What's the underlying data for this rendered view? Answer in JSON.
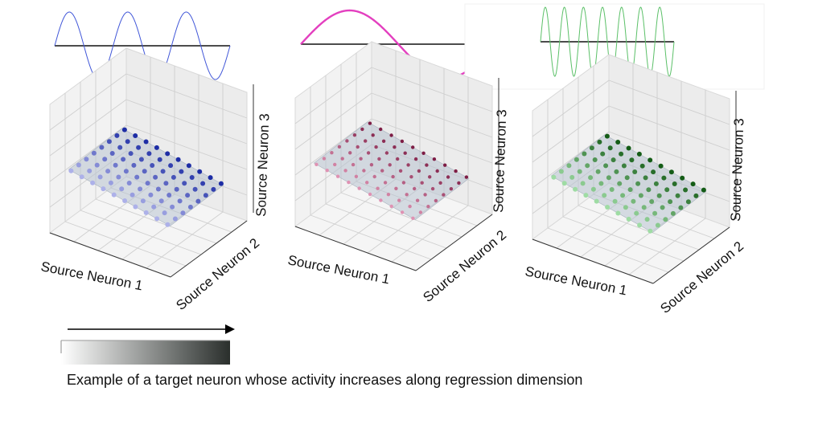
{
  "waves": [
    {
      "name": "blue-sine",
      "color": "#4056d8",
      "cycles": 3
    },
    {
      "name": "pink-sine",
      "color": "#e33fbf",
      "cycles": 0.85
    },
    {
      "name": "green-sine",
      "color": "#5bc068",
      "cycles": 7
    }
  ],
  "panels": [
    {
      "name": "blue",
      "palette": {
        "low": "#c6c8f5",
        "high": "#1d2da5"
      },
      "axis_labels": {
        "x": "Source Neuron 1",
        "y": "Source Neuron 2",
        "z": "Source Neuron 3"
      }
    },
    {
      "name": "pink",
      "palette": {
        "low": "#f0a7c6",
        "high": "#7e1d45"
      },
      "axis_labels": {
        "x": "Source Neuron 1",
        "y": "Source Neuron 2",
        "z": "Source Neuron 3"
      }
    },
    {
      "name": "green",
      "palette": {
        "low": "#b7f3bd",
        "high": "#145c16"
      },
      "axis_labels": {
        "x": "Source Neuron 1",
        "y": "Source Neuron 2",
        "z": "Source Neuron 3"
      }
    }
  ],
  "gradient": {
    "from": "#ffffff",
    "to": "#2a2f2c"
  },
  "caption": "Example of a target neuron whose activity increases along regression dimension"
}
